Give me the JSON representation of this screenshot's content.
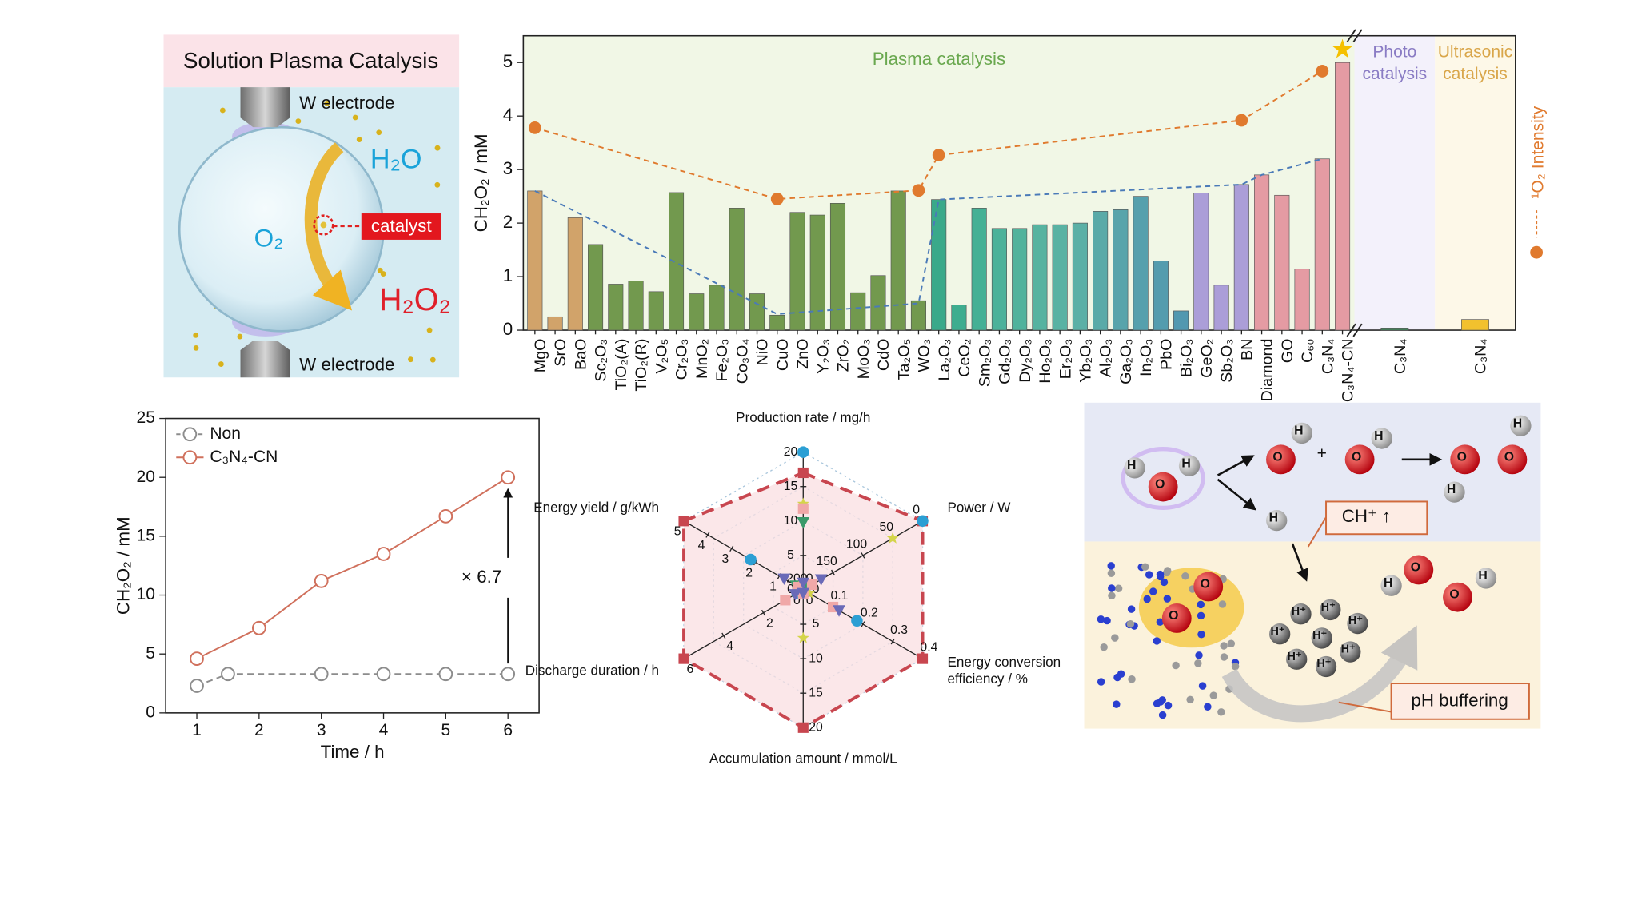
{
  "panels": {
    "plasma": {
      "title": "Solution Plasma Catalysis",
      "electrode_top": "W electrode",
      "electrode_bottom": "W electrode",
      "inside": "O₂",
      "water": "H₂O",
      "catalyst": "catalyst",
      "product": "H₂O₂"
    },
    "mechanism": {
      "label_ch": "CH⁺ ↑",
      "label_ph": "pH buffering",
      "plus": "+",
      "atoms": [
        "H",
        "O",
        "H",
        "O",
        "H",
        "O",
        "H",
        "O",
        "O",
        "H",
        "H",
        "H",
        "O",
        "O",
        "O",
        "O",
        "H",
        "H"
      ],
      "ions": [
        "H⁺",
        "H⁺",
        "H⁺",
        "H⁺",
        "H⁺",
        "H⁺",
        "H⁺",
        "H⁺"
      ]
    }
  },
  "chart_data": [
    {
      "type": "bar",
      "ylabel": "CH₂O₂ / mM",
      "ylim": [
        0,
        5.5
      ],
      "yticks": [
        0,
        1,
        2,
        3,
        4,
        5
      ],
      "group_label": "Plasma catalysis",
      "categories": [
        "MgO",
        "SrO",
        "BaO",
        "Sc₂O₃",
        "TiO₂(A)",
        "TiO₂(R)",
        "V₂O₅",
        "Cr₂O₃",
        "MnO₂",
        "Fe₂O₃",
        "Co₃O₄",
        "NiO",
        "CuO",
        "ZnO",
        "Y₂O₃",
        "ZrO₂",
        "MoO₃",
        "CdO",
        "Ta₂O₅",
        "WO₃",
        "La₂O₃",
        "CeO₂",
        "Sm₂O₃",
        "Gd₂O₃",
        "Dy₂O₃",
        "Ho₂O₃",
        "Er₂O₃",
        "Yb₂O₃",
        "Al₂O₃",
        "Ga₂O₃",
        "In₂O₃",
        "PbO",
        "Bi₂O₃",
        "GeO₂",
        "Sb₂O₃",
        "BN",
        "Diamond",
        "GO",
        "C₆₀",
        "C₃N₄",
        "C₃N₄-CN"
      ],
      "values": [
        2.6,
        0.25,
        2.1,
        1.6,
        0.86,
        0.92,
        0.72,
        2.57,
        0.68,
        0.84,
        2.28,
        0.68,
        0.28,
        2.2,
        2.15,
        2.37,
        0.7,
        1.02,
        2.6,
        0.55,
        2.44,
        0.47,
        2.28,
        1.9,
        1.9,
        1.97,
        1.97,
        2.0,
        2.22,
        2.25,
        2.5,
        1.29,
        0.36,
        2.56,
        0.84,
        2.72,
        2.9,
        2.52,
        1.14,
        3.2,
        5.0
      ],
      "colors": [
        "#d1a36a",
        "#d1a36a",
        "#d1a36a",
        "#72994e",
        "#72994e",
        "#72994e",
        "#72994e",
        "#72994e",
        "#72994e",
        "#72994e",
        "#72994e",
        "#72994e",
        "#72994e",
        "#72994e",
        "#72994e",
        "#72994e",
        "#72994e",
        "#72994e",
        "#72994e",
        "#72994e",
        "#3aa98a",
        "#3ead8f",
        "#45b095",
        "#4cb29a",
        "#51b39c",
        "#56b3a0",
        "#59b2a3",
        "#5bb0a6",
        "#5aaaa8",
        "#58a4ab",
        "#56a0ad",
        "#549cae",
        "#5298b0",
        "#ab9ed8",
        "#ab9ed8",
        "#ab9ed8",
        "#e49ba3",
        "#e49ba3",
        "#e49ba3",
        "#e49ba3",
        "#e49ba3"
      ],
      "extra_groups": [
        {
          "label": [
            "Photo",
            "catalysis"
          ],
          "label_color": "#8a7cc4",
          "categories": [
            "C₃N₄"
          ],
          "values": [
            0.04
          ],
          "color": "#3d8b5a"
        },
        {
          "label": [
            "Ultrasonic",
            "catalysis"
          ],
          "label_color": "#d9a64a",
          "categories": [
            "C₃N₄"
          ],
          "values": [
            0.2
          ],
          "color": "#f2c12e"
        }
      ],
      "lines": [
        {
          "name": "¹O₂ Intensity",
          "color": "#e07a2e",
          "x": [
            0,
            12,
            19,
            20,
            35,
            39
          ],
          "values": [
            3.78,
            2.45,
            2.61,
            3.27,
            3.92,
            4.84
          ]
        },
        {
          "color": "#4a7ab8",
          "x": [
            0,
            12,
            19,
            20,
            35,
            36,
            39
          ],
          "values": [
            2.6,
            0.3,
            0.5,
            2.44,
            2.72,
            2.9,
            3.2
          ]
        }
      ]
    },
    {
      "type": "line",
      "xlabel": "Time / h",
      "ylabel": "CH₂O₂ / mM",
      "xlim": [
        0.5,
        6.5
      ],
      "xticks": [
        1,
        2,
        3,
        4,
        5,
        6
      ],
      "ylim": [
        0,
        25
      ],
      "yticks": [
        0,
        5,
        10,
        15,
        20,
        25
      ],
      "legend": "upper left",
      "annotation": "× 6.7",
      "series": [
        {
          "name": "Non",
          "color": "#8c8c8c",
          "dash": true,
          "x": [
            1,
            1.5,
            3,
            4,
            5,
            6
          ],
          "values": [
            2.3,
            3.3,
            3.3,
            3.3,
            3.3,
            3.3
          ]
        },
        {
          "name": "C₃N₄-CN",
          "color": "#d0705c",
          "dash": false,
          "x": [
            1,
            2,
            3,
            4,
            5,
            6
          ],
          "values": [
            4.6,
            7.2,
            11.2,
            13.5,
            16.7,
            20.0
          ]
        }
      ]
    },
    {
      "type": "radar",
      "axes": [
        {
          "label": [
            "Production rate / mg/h"
          ],
          "lim": [
            0,
            20
          ],
          "ticks": [
            0,
            5,
            10,
            15,
            20
          ]
        },
        {
          "label": [
            "Power / W"
          ],
          "lim": [
            200,
            0
          ],
          "ticks": [
            200,
            150,
            100,
            50,
            0
          ]
        },
        {
          "label": [
            "Energy conversion",
            "efficiency / %"
          ],
          "lim": [
            0,
            0.4
          ],
          "ticks": [
            0,
            0.1,
            0.2,
            0.3,
            0.4
          ]
        },
        {
          "label": [
            "Accumulation amount / mmol/L"
          ],
          "lim": [
            0,
            20
          ],
          "ticks": [
            0,
            5,
            10,
            15,
            20
          ]
        },
        {
          "label": [
            "Discharge duration / h"
          ],
          "lim": [
            0,
            6
          ],
          "ticks": [
            0,
            2,
            4,
            6
          ]
        },
        {
          "label": [
            "Energy yield / g/kWh"
          ],
          "lim": [
            0,
            5
          ],
          "ticks": [
            0,
            1,
            2,
            3,
            4,
            5
          ]
        }
      ],
      "series": [
        {
          "color": "#c8464f",
          "marker": "square",
          "polygon": true,
          "values": [
            17,
            0,
            0.4,
            20,
            6,
            5
          ]
        },
        {
          "color": "#2b9fd4",
          "marker": "circle",
          "polygon": false,
          "values": [
            20,
            0,
            0.18,
            0,
            0.3,
            2.2
          ]
        },
        {
          "color": "#3a9a6a",
          "marker": "triangle",
          "polygon": false,
          "values": [
            9.8,
            190,
            0.01,
            0.5,
            0.2,
            0.3
          ]
        },
        {
          "color": "#d4d44a",
          "marker": "star",
          "polygon": false,
          "values": [
            12.5,
            50,
            0.02,
            7,
            0.3,
            0.2
          ]
        },
        {
          "color": "#f0a8a8",
          "marker": "square",
          "polygon": false,
          "values": [
            11.8,
            185,
            0.1,
            0.6,
            0.9,
            0.2
          ]
        },
        {
          "color": "#6a6ab8",
          "marker": "triangle",
          "polygon": false,
          "values": [
            1,
            170,
            0.12,
            0.5,
            0.4,
            0.8
          ]
        }
      ]
    }
  ]
}
